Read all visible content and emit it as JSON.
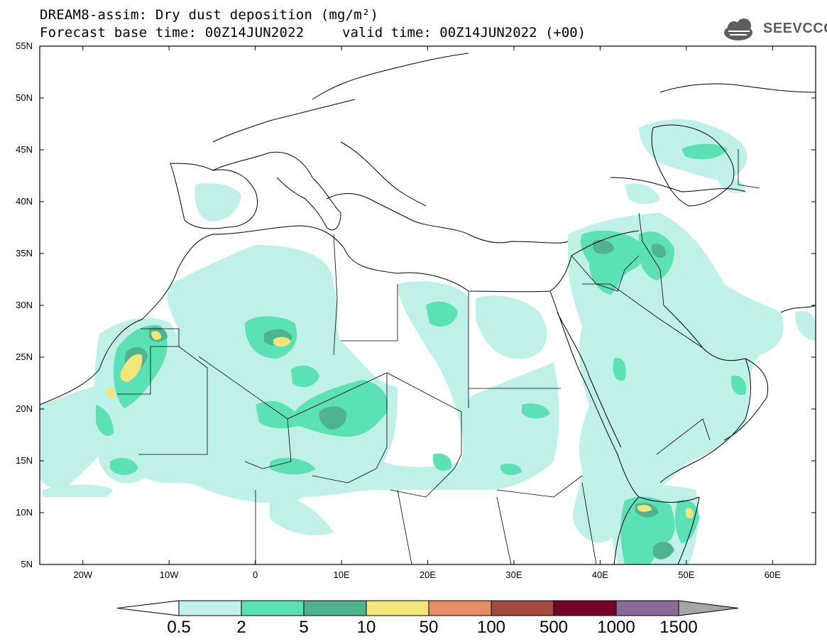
{
  "title": {
    "line1": "DREAM8-assim: Dry dust deposition (mg/m²)",
    "line2": "Forecast base time: 00Z14JUN2022",
    "valid": "valid time: 00Z14JUN2022 (+00)"
  },
  "logo": {
    "text": "SEEVCCC",
    "icon": "cloud-logo-icon"
  },
  "map": {
    "lat_labels": [
      "55N",
      "50N",
      "45N",
      "40N",
      "35N",
      "30N",
      "25N",
      "20N",
      "15N",
      "10N",
      "5N"
    ],
    "lon_labels": [
      "20W",
      "10W",
      "0",
      "10E",
      "20E",
      "30E",
      "40E",
      "50E",
      "60E"
    ],
    "lon_range": [
      -25,
      65
    ],
    "lat_range": [
      5,
      55
    ]
  },
  "colorbar": {
    "labels": [
      "0.5",
      "2",
      "5",
      "10",
      "50",
      "100",
      "500",
      "1000",
      "1500"
    ],
    "colors": [
      "#bff1e9",
      "#5ce0b6",
      "#4fb48e",
      "#f2e57a",
      "#e78c66",
      "#a34a3e",
      "#7a0027",
      "#8c6a9c"
    ],
    "low_arrow_color": "#ffffff",
    "high_arrow_color": "#a6a6a6"
  }
}
